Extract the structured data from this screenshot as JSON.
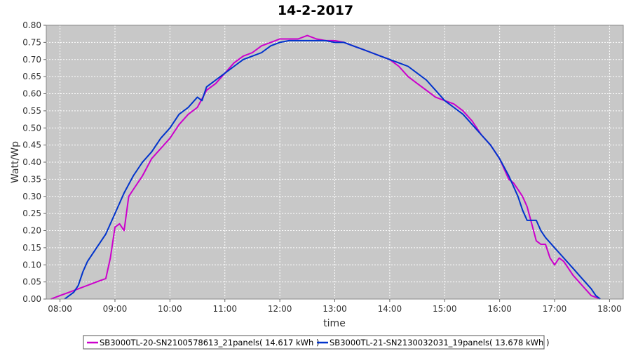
{
  "chart_data": {
    "type": "line",
    "title": "14-2-2017",
    "xlabel": "time",
    "ylabel": "Watt/Wp",
    "ylim": [
      0,
      0.8
    ],
    "xlim": [
      "07:45",
      "18:15"
    ],
    "x_ticks": [
      "08:00",
      "09:00",
      "10:00",
      "11:00",
      "12:00",
      "13:00",
      "14:00",
      "15:00",
      "16:00",
      "17:00",
      "18:00"
    ],
    "y_ticks": [
      "0.00",
      "0.05",
      "0.10",
      "0.15",
      "0.20",
      "0.25",
      "0.30",
      "0.35",
      "0.40",
      "0.45",
      "0.50",
      "0.55",
      "0.60",
      "0.65",
      "0.70",
      "0.75",
      "0.80"
    ],
    "grid": true,
    "legend_position": "bottom",
    "plot_background": "#c8c8c8",
    "series": [
      {
        "name": "SB3000TL-20-SN2100578613_21panels( 14.617 kWh )",
        "color": "#cc00cc",
        "points": [
          [
            "07:50",
            0.0
          ],
          [
            "08:00",
            0.01
          ],
          [
            "08:10",
            0.02
          ],
          [
            "08:20",
            0.03
          ],
          [
            "08:30",
            0.04
          ],
          [
            "08:40",
            0.05
          ],
          [
            "08:50",
            0.06
          ],
          [
            "08:55",
            0.12
          ],
          [
            "09:00",
            0.21
          ],
          [
            "09:05",
            0.22
          ],
          [
            "09:10",
            0.2
          ],
          [
            "09:15",
            0.3
          ],
          [
            "09:20",
            0.32
          ],
          [
            "09:30",
            0.36
          ],
          [
            "09:40",
            0.41
          ],
          [
            "09:50",
            0.44
          ],
          [
            "10:00",
            0.47
          ],
          [
            "10:10",
            0.51
          ],
          [
            "10:20",
            0.54
          ],
          [
            "10:30",
            0.56
          ],
          [
            "10:40",
            0.61
          ],
          [
            "10:50",
            0.63
          ],
          [
            "11:00",
            0.66
          ],
          [
            "11:10",
            0.69
          ],
          [
            "11:20",
            0.71
          ],
          [
            "11:30",
            0.72
          ],
          [
            "11:40",
            0.74
          ],
          [
            "11:50",
            0.75
          ],
          [
            "12:00",
            0.76
          ],
          [
            "12:10",
            0.76
          ],
          [
            "12:20",
            0.76
          ],
          [
            "12:30",
            0.77
          ],
          [
            "12:40",
            0.76
          ],
          [
            "12:50",
            0.755
          ],
          [
            "13:00",
            0.755
          ],
          [
            "13:10",
            0.75
          ],
          [
            "13:20",
            0.74
          ],
          [
            "13:30",
            0.73
          ],
          [
            "13:40",
            0.72
          ],
          [
            "13:50",
            0.71
          ],
          [
            "14:00",
            0.7
          ],
          [
            "14:10",
            0.68
          ],
          [
            "14:20",
            0.65
          ],
          [
            "14:30",
            0.63
          ],
          [
            "14:40",
            0.61
          ],
          [
            "14:50",
            0.59
          ],
          [
            "15:00",
            0.58
          ],
          [
            "15:10",
            0.57
          ],
          [
            "15:20",
            0.55
          ],
          [
            "15:30",
            0.52
          ],
          [
            "15:40",
            0.48
          ],
          [
            "15:50",
            0.45
          ],
          [
            "16:00",
            0.41
          ],
          [
            "16:05",
            0.38
          ],
          [
            "16:10",
            0.35
          ],
          [
            "16:15",
            0.34
          ],
          [
            "16:20",
            0.32
          ],
          [
            "16:25",
            0.3
          ],
          [
            "16:30",
            0.27
          ],
          [
            "16:35",
            0.22
          ],
          [
            "16:40",
            0.17
          ],
          [
            "16:45",
            0.16
          ],
          [
            "16:50",
            0.16
          ],
          [
            "16:55",
            0.12
          ],
          [
            "17:00",
            0.1
          ],
          [
            "17:05",
            0.12
          ],
          [
            "17:10",
            0.11
          ],
          [
            "17:15",
            0.09
          ],
          [
            "17:20",
            0.07
          ],
          [
            "17:30",
            0.04
          ],
          [
            "17:40",
            0.01
          ],
          [
            "17:50",
            0.0
          ]
        ]
      },
      {
        "name": "SB3000TL-21-SN2130032031_19panels( 13.678 kWh )",
        "color": "#0033cc",
        "points": [
          [
            "08:05",
            0.0
          ],
          [
            "08:15",
            0.02
          ],
          [
            "08:20",
            0.04
          ],
          [
            "08:25",
            0.08
          ],
          [
            "08:30",
            0.11
          ],
          [
            "08:40",
            0.15
          ],
          [
            "08:50",
            0.19
          ],
          [
            "09:00",
            0.25
          ],
          [
            "09:10",
            0.31
          ],
          [
            "09:20",
            0.36
          ],
          [
            "09:30",
            0.4
          ],
          [
            "09:40",
            0.43
          ],
          [
            "09:50",
            0.47
          ],
          [
            "10:00",
            0.5
          ],
          [
            "10:10",
            0.54
          ],
          [
            "10:20",
            0.56
          ],
          [
            "10:30",
            0.59
          ],
          [
            "10:35",
            0.58
          ],
          [
            "10:40",
            0.62
          ],
          [
            "10:50",
            0.64
          ],
          [
            "11:00",
            0.66
          ],
          [
            "11:10",
            0.68
          ],
          [
            "11:20",
            0.7
          ],
          [
            "11:30",
            0.71
          ],
          [
            "11:40",
            0.72
          ],
          [
            "11:50",
            0.74
          ],
          [
            "12:00",
            0.75
          ],
          [
            "12:10",
            0.755
          ],
          [
            "12:20",
            0.755
          ],
          [
            "12:30",
            0.755
          ],
          [
            "12:40",
            0.755
          ],
          [
            "12:50",
            0.755
          ],
          [
            "13:00",
            0.75
          ],
          [
            "13:10",
            0.75
          ],
          [
            "13:20",
            0.74
          ],
          [
            "13:30",
            0.73
          ],
          [
            "13:40",
            0.72
          ],
          [
            "13:50",
            0.71
          ],
          [
            "14:00",
            0.7
          ],
          [
            "14:10",
            0.69
          ],
          [
            "14:20",
            0.68
          ],
          [
            "14:30",
            0.66
          ],
          [
            "14:40",
            0.64
          ],
          [
            "14:50",
            0.61
          ],
          [
            "15:00",
            0.58
          ],
          [
            "15:10",
            0.56
          ],
          [
            "15:20",
            0.54
          ],
          [
            "15:30",
            0.51
          ],
          [
            "15:40",
            0.48
          ],
          [
            "15:50",
            0.45
          ],
          [
            "16:00",
            0.41
          ],
          [
            "16:10",
            0.36
          ],
          [
            "16:20",
            0.3
          ],
          [
            "16:25",
            0.26
          ],
          [
            "16:30",
            0.23
          ],
          [
            "16:40",
            0.23
          ],
          [
            "16:45",
            0.2
          ],
          [
            "16:50",
            0.18
          ],
          [
            "17:00",
            0.15
          ],
          [
            "17:10",
            0.12
          ],
          [
            "17:20",
            0.09
          ],
          [
            "17:30",
            0.06
          ],
          [
            "17:40",
            0.03
          ],
          [
            "17:45",
            0.01
          ],
          [
            "17:50",
            0.0
          ]
        ]
      }
    ]
  }
}
